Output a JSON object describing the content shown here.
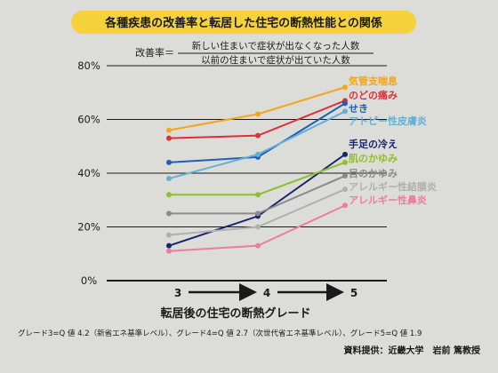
{
  "chart_data": {
    "type": "line",
    "title": "各種疾患の改善率と転居した住宅の断熱性能との関係",
    "formula": {
      "label": "改善率＝",
      "numerator": "新しい住まいで症状が出なくなった人数",
      "denominator": "以前の住まいで症状が出ていた人数"
    },
    "categories": [
      "3",
      "4",
      "5"
    ],
    "xlabel": "転居後の住宅の断熱グレード",
    "ylabel": "",
    "yticks": [
      "0%",
      "20%",
      "40%",
      "60%",
      "80%"
    ],
    "ylim": [
      0,
      80
    ],
    "series": [
      {
        "name": "気管支喘息",
        "values": [
          56,
          62,
          72
        ],
        "color": "#f3a51b"
      },
      {
        "name": "のどの痛み",
        "values": [
          53,
          54,
          67
        ],
        "color": "#d8323a"
      },
      {
        "name": "せき",
        "values": [
          44,
          46,
          66
        ],
        "color": "#1f5fb5"
      },
      {
        "name": "アトピー性皮膚炎",
        "values": [
          38,
          47,
          63
        ],
        "color": "#62b0d8"
      },
      {
        "name": "手足の冷え",
        "values": [
          13,
          24,
          47
        ],
        "color": "#18256f"
      },
      {
        "name": "肌のかゆみ",
        "values": [
          32,
          32,
          44
        ],
        "color": "#8fbf2d"
      },
      {
        "name": "目のかゆみ",
        "values": [
          25,
          25,
          39
        ],
        "color": "#8a8a8a"
      },
      {
        "name": "アレルギー性結膜炎",
        "values": [
          17,
          20,
          34
        ],
        "color": "#b0b0b0"
      },
      {
        "name": "アレルギー性鼻炎",
        "values": [
          11,
          13,
          28
        ],
        "color": "#ef7d9a"
      }
    ],
    "grid": true,
    "legend": "right (inline labels at line ends)"
  },
  "footnote": "グレード3=Q 値 4.2（新省エネ基準レベル）、グレード4=Q 値 2.7（次世代省エネ基準レベル）、グレード5=Q 値 1.9",
  "source": "資料提供：近畿大学　岩前 篤教授"
}
